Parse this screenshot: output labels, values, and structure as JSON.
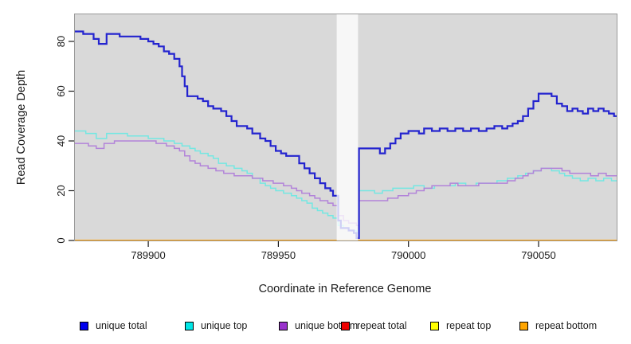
{
  "chart_data": {
    "type": "line",
    "subtype": "step",
    "title": "",
    "xlabel": "Coordinate in Reference Genome",
    "ylabel": "Read Coverage Depth",
    "xlim": [
      789871.5,
      790080
    ],
    "ylim": [
      0,
      91.2
    ],
    "x_ticks": [
      789900,
      789950,
      790000,
      790050
    ],
    "y_ticks": [
      0,
      20,
      40,
      60,
      80
    ],
    "grid": false,
    "plot_bg_color": "#d9d9d9",
    "plot_border_color": "#999999",
    "legend_position": "bottom",
    "highlight_band": {
      "x_start": 789972.4,
      "x_end": 789980.6,
      "color": "#ffffff",
      "opacity": 0.78
    },
    "series": [
      {
        "name": "unique total",
        "color": "#2424cf",
        "legend_fill": "#0000ee",
        "width": 2.2,
        "points": [
          [
            789871.5,
            84
          ],
          [
            789875,
            83
          ],
          [
            789879,
            81
          ],
          [
            789881,
            79
          ],
          [
            789884,
            83
          ],
          [
            789889,
            82
          ],
          [
            789897,
            81
          ],
          [
            789900,
            80
          ],
          [
            789902,
            79
          ],
          [
            789904,
            78
          ],
          [
            789906,
            76
          ],
          [
            789908,
            75
          ],
          [
            789910,
            73
          ],
          [
            789912,
            70
          ],
          [
            789913,
            66
          ],
          [
            789914,
            62
          ],
          [
            789915,
            58
          ],
          [
            789919,
            57
          ],
          [
            789921,
            56
          ],
          [
            789923,
            54
          ],
          [
            789925,
            53
          ],
          [
            789928,
            52
          ],
          [
            789930,
            50
          ],
          [
            789932,
            48
          ],
          [
            789934,
            46
          ],
          [
            789938,
            45
          ],
          [
            789940,
            43
          ],
          [
            789943,
            41
          ],
          [
            789945,
            40
          ],
          [
            789947,
            38
          ],
          [
            789949,
            36
          ],
          [
            789951,
            35
          ],
          [
            789953,
            34
          ],
          [
            789958,
            31
          ],
          [
            789960,
            29
          ],
          [
            789962,
            27
          ],
          [
            789964,
            25
          ],
          [
            789966,
            23
          ],
          [
            789968,
            21
          ],
          [
            789970,
            20
          ],
          [
            789971,
            18
          ],
          [
            789973,
            8
          ],
          [
            789974,
            5
          ],
          [
            789977,
            4
          ],
          [
            789979,
            3
          ],
          [
            789980,
            1
          ],
          [
            789981,
            37
          ],
          [
            789989,
            35
          ],
          [
            789991,
            37
          ],
          [
            789993,
            39
          ],
          [
            789995,
            41
          ],
          [
            789997,
            43
          ],
          [
            790000,
            44
          ],
          [
            790004,
            43
          ],
          [
            790006,
            45
          ],
          [
            790009,
            44
          ],
          [
            790012,
            45
          ],
          [
            790015,
            44
          ],
          [
            790018,
            45
          ],
          [
            790021,
            44
          ],
          [
            790024,
            45
          ],
          [
            790027,
            44
          ],
          [
            790030,
            45
          ],
          [
            790033,
            46
          ],
          [
            790036,
            45
          ],
          [
            790038,
            46
          ],
          [
            790040,
            47
          ],
          [
            790042,
            48
          ],
          [
            790044,
            50
          ],
          [
            790046,
            53
          ],
          [
            790048,
            56
          ],
          [
            790050,
            59
          ],
          [
            790055,
            58
          ],
          [
            790057,
            55
          ],
          [
            790059,
            54
          ],
          [
            790061,
            52
          ],
          [
            790063,
            53
          ],
          [
            790065,
            52
          ],
          [
            790067,
            51
          ],
          [
            790069,
            53
          ],
          [
            790071,
            52
          ],
          [
            790073,
            53
          ],
          [
            790075,
            52
          ],
          [
            790077,
            51
          ],
          [
            790079,
            50
          ]
        ]
      },
      {
        "name": "unique top",
        "color": "#74e7e2",
        "legend_fill": "#00e6e6",
        "width": 1.5,
        "points": [
          [
            789871.5,
            44
          ],
          [
            789876,
            43
          ],
          [
            789880,
            41
          ],
          [
            789884,
            43
          ],
          [
            789892,
            42
          ],
          [
            789900,
            41
          ],
          [
            789906,
            40
          ],
          [
            789910,
            39
          ],
          [
            789913,
            38
          ],
          [
            789916,
            37
          ],
          [
            789918,
            36
          ],
          [
            789920,
            35
          ],
          [
            789923,
            34
          ],
          [
            789925,
            33
          ],
          [
            789927,
            31
          ],
          [
            789930,
            30
          ],
          [
            789933,
            29
          ],
          [
            789936,
            28
          ],
          [
            789938,
            27
          ],
          [
            789940,
            25
          ],
          [
            789943,
            23
          ],
          [
            789945,
            22
          ],
          [
            789947,
            21
          ],
          [
            789949,
            20
          ],
          [
            789952,
            19
          ],
          [
            789955,
            18
          ],
          [
            789957,
            17
          ],
          [
            789959,
            16
          ],
          [
            789961,
            15
          ],
          [
            789963,
            13
          ],
          [
            789965,
            12
          ],
          [
            789967,
            11
          ],
          [
            789969,
            10
          ],
          [
            789971,
            9
          ],
          [
            789973,
            6
          ],
          [
            789975,
            5
          ],
          [
            789977,
            4
          ],
          [
            789980,
            3
          ],
          [
            789981,
            20
          ],
          [
            789987,
            19
          ],
          [
            789990,
            20
          ],
          [
            789994,
            21
          ],
          [
            789998,
            21
          ],
          [
            790002,
            22
          ],
          [
            790006,
            21
          ],
          [
            790010,
            22
          ],
          [
            790018,
            23
          ],
          [
            790022,
            22
          ],
          [
            790026,
            23
          ],
          [
            790034,
            24
          ],
          [
            790038,
            25
          ],
          [
            790042,
            26
          ],
          [
            790045,
            27
          ],
          [
            790048,
            28
          ],
          [
            790051,
            29
          ],
          [
            790055,
            28
          ],
          [
            790058,
            27
          ],
          [
            790060,
            26
          ],
          [
            790063,
            25
          ],
          [
            790066,
            24
          ],
          [
            790069,
            25
          ],
          [
            790072,
            24
          ],
          [
            790075,
            25
          ],
          [
            790078,
            24
          ]
        ]
      },
      {
        "name": "unique bottom",
        "color": "#b283d9",
        "legend_fill": "#9932cc",
        "width": 1.5,
        "points": [
          [
            789871.5,
            39
          ],
          [
            789877,
            38
          ],
          [
            789880,
            37
          ],
          [
            789883,
            39
          ],
          [
            789887,
            40
          ],
          [
            789898,
            40
          ],
          [
            789903,
            39
          ],
          [
            789907,
            38
          ],
          [
            789910,
            37
          ],
          [
            789912,
            36
          ],
          [
            789914,
            34
          ],
          [
            789916,
            32
          ],
          [
            789918,
            31
          ],
          [
            789920,
            30
          ],
          [
            789923,
            29
          ],
          [
            789926,
            28
          ],
          [
            789929,
            27
          ],
          [
            789933,
            26
          ],
          [
            789940,
            25
          ],
          [
            789944,
            24
          ],
          [
            789948,
            23
          ],
          [
            789952,
            22
          ],
          [
            789955,
            21
          ],
          [
            789957,
            20
          ],
          [
            789959,
            19
          ],
          [
            789962,
            18
          ],
          [
            789964,
            17
          ],
          [
            789966,
            16
          ],
          [
            789969,
            15
          ],
          [
            789971,
            14
          ],
          [
            789973,
            10
          ],
          [
            789975,
            8
          ],
          [
            789977,
            7
          ],
          [
            789980,
            6
          ],
          [
            789981,
            16
          ],
          [
            789988,
            16
          ],
          [
            789992,
            17
          ],
          [
            789996,
            18
          ],
          [
            790000,
            19
          ],
          [
            790003,
            20
          ],
          [
            790006,
            21
          ],
          [
            790009,
            22
          ],
          [
            790016,
            23
          ],
          [
            790019,
            22
          ],
          [
            790027,
            23
          ],
          [
            790035,
            23
          ],
          [
            790038,
            24
          ],
          [
            790041,
            25
          ],
          [
            790044,
            26
          ],
          [
            790046,
            27
          ],
          [
            790048,
            28
          ],
          [
            790051,
            29
          ],
          [
            790056,
            29
          ],
          [
            790059,
            28
          ],
          [
            790062,
            27
          ],
          [
            790070,
            26
          ],
          [
            790073,
            27
          ],
          [
            790076,
            26
          ]
        ]
      },
      {
        "name": "repeat total",
        "color": "#dd0000",
        "legend_fill": "#ee0000",
        "width": 1.5,
        "points": [
          [
            789871.5,
            0
          ],
          [
            790079,
            0
          ]
        ]
      },
      {
        "name": "repeat top",
        "color": "#ffff00",
        "legend_fill": "#ffff00",
        "width": 1.5,
        "points": [
          [
            789871.5,
            0
          ],
          [
            790079,
            0
          ]
        ]
      },
      {
        "name": "repeat bottom",
        "color": "#ff9d00",
        "legend_fill": "#ffa500",
        "width": 1.8,
        "points": [
          [
            789871.5,
            0
          ],
          [
            790079,
            0
          ]
        ]
      }
    ]
  }
}
